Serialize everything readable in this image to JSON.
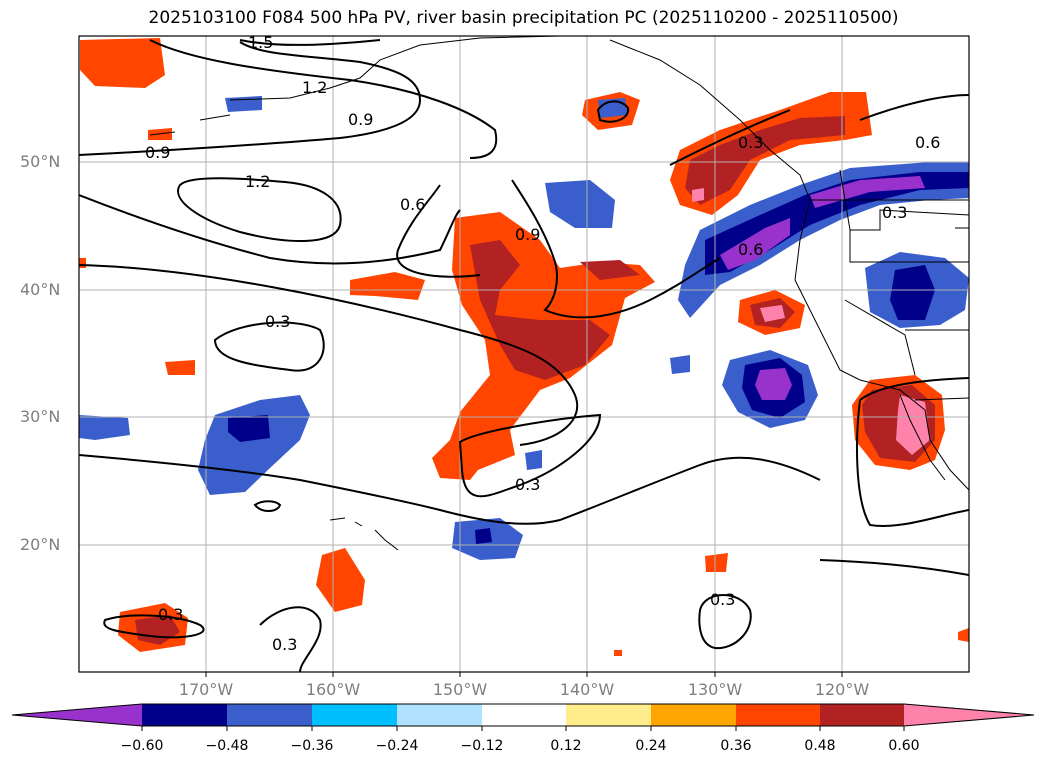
{
  "title": "2025103100 F084 500 hPa PV, river basin precipitation PC (2025110200 - 2025110500)",
  "lat_labels": [
    "50°N",
    "40°N",
    "30°N",
    "20°N"
  ],
  "lon_labels": [
    "170°W",
    "160°W",
    "150°W",
    "140°W",
    "130°W",
    "120°W"
  ],
  "contour_labels": [
    "1.5",
    "1.2",
    "0.9",
    "0.9",
    "1.2",
    "0.6",
    "0.9",
    "0.6",
    "0.6",
    "0.3",
    "0.3",
    "0.3",
    "0.3",
    "0.3",
    "0.3",
    "0.3"
  ],
  "colorbar": {
    "colors": [
      "#9932cc",
      "#00008b",
      "#3a5fcd",
      "#00bfff",
      "#b0e2ff",
      "#ffffff",
      "#ffec8b",
      "#ffa500",
      "#ff4500",
      "#b22222",
      "#ff82ab"
    ],
    "ticks": [
      "−0.60",
      "−0.48",
      "−0.36",
      "−0.24",
      "−0.12",
      "0.12",
      "0.24",
      "0.36",
      "0.48",
      "0.60"
    ]
  }
}
